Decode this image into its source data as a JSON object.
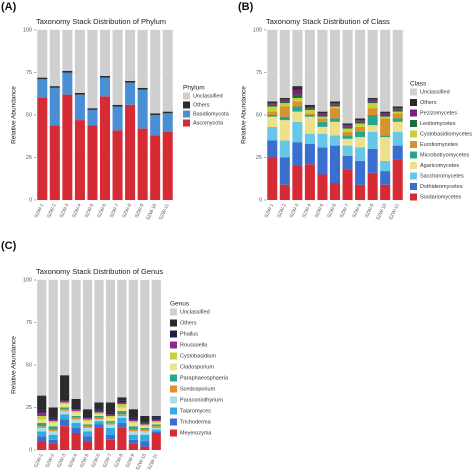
{
  "chart_data": [
    {
      "type": "stacked_bar",
      "panel_label": "(A)",
      "title": "Taxonomy Stack Distribution of Phylum",
      "ylabel": "Relative Abundance",
      "legend_title": "Phylum",
      "categories": [
        "SZW-1",
        "SZW-2",
        "SZW-3",
        "SZW-4",
        "SZW-5",
        "SZW-6",
        "SZW-7",
        "SZW-8",
        "SZW-9",
        "SZW-10",
        "SZW-11"
      ],
      "ylim": [
        0,
        100
      ],
      "yticks": [
        0,
        25,
        50,
        75,
        100
      ],
      "grid": true,
      "series": [
        {
          "name": "Ascomycota",
          "color": "#d62a35",
          "values": [
            60,
            44,
            62,
            47,
            44,
            61,
            41,
            56,
            42,
            38,
            40
          ]
        },
        {
          "name": "Basidiomycota",
          "color": "#4a8fd6",
          "values": [
            11,
            22,
            13,
            15,
            9,
            11,
            14,
            13,
            23,
            12,
            11
          ]
        },
        {
          "name": "Others",
          "color": "#2b2b2b",
          "values": [
            1,
            1,
            1,
            1,
            1,
            1,
            1,
            1,
            1,
            1,
            1
          ]
        },
        {
          "name": "Unclassified",
          "color": "#cfcfcf",
          "values": [
            28,
            33,
            24,
            37,
            46,
            27,
            44,
            30,
            34,
            49,
            48
          ]
        }
      ]
    },
    {
      "type": "stacked_bar",
      "panel_label": "(B)",
      "title": "Taxonomy Stack Distribution of Class",
      "ylabel": "Relative Abundance",
      "legend_title": "Class",
      "categories": [
        "SZW-1",
        "SZW-2",
        "SZW-3",
        "SZW-4",
        "SZW-5",
        "SZW-6",
        "SZW-7",
        "SZW-8",
        "SZW-9",
        "SZW-10",
        "SZW-11"
      ],
      "ylim": [
        0,
        100
      ],
      "yticks": [
        0,
        25,
        50,
        75,
        100
      ],
      "grid": true,
      "series": [
        {
          "name": "Sordariomycetes",
          "color": "#d62a35",
          "values": [
            25,
            9,
            20,
            21,
            15,
            10,
            18,
            9,
            16,
            9,
            24
          ]
        },
        {
          "name": "Dothideomycetes",
          "color": "#3a6fd0",
          "values": [
            10,
            16,
            14,
            12,
            16,
            22,
            8,
            14,
            14,
            8,
            8
          ]
        },
        {
          "name": "Saccharomycetes",
          "color": "#66c7e6",
          "values": [
            8,
            10,
            12,
            6,
            8,
            6,
            6,
            8,
            10,
            6,
            8
          ]
        },
        {
          "name": "Agaricomycetes",
          "color": "#ede08a",
          "values": [
            6,
            12,
            6,
            10,
            4,
            8,
            4,
            6,
            4,
            14,
            6
          ]
        },
        {
          "name": "Microbotryomycetes",
          "color": "#2aa58c",
          "values": [
            1,
            2,
            3,
            1,
            3,
            2,
            2,
            3,
            6,
            1,
            2
          ]
        },
        {
          "name": "Eurotiomycetes",
          "color": "#d8922a",
          "values": [
            2,
            6,
            3,
            1,
            2,
            6,
            2,
            3,
            4,
            10,
            3
          ]
        },
        {
          "name": "Cystobasidiomycetes",
          "color": "#c8cf3c",
          "values": [
            3,
            2,
            2,
            2,
            1,
            1,
            2,
            2,
            3,
            1,
            1
          ]
        },
        {
          "name": "Leotiomycetes",
          "color": "#1f6b3a",
          "values": [
            1,
            1,
            2,
            1,
            1,
            1,
            1,
            1,
            1,
            1,
            1
          ]
        },
        {
          "name": "Pezizomycetes",
          "color": "#7a1f7a",
          "values": [
            1,
            1,
            3,
            1,
            1,
            1,
            1,
            1,
            1,
            1,
            1
          ]
        },
        {
          "name": "Others",
          "color": "#2b2b2b",
          "values": [
            1,
            1,
            2,
            1,
            1,
            1,
            1,
            1,
            1,
            1,
            1
          ]
        },
        {
          "name": "Unclassified",
          "color": "#cfcfcf",
          "values": [
            42,
            40,
            33,
            44,
            48,
            42,
            55,
            52,
            40,
            48,
            45
          ]
        }
      ]
    },
    {
      "type": "stacked_bar",
      "panel_label": "(C)",
      "title": "Taxonomy Stack Distribution of Genus",
      "ylabel": "Relative Abundance",
      "legend_title": "Genus",
      "categories": [
        "SZW-1",
        "SZW-2",
        "SZW-3",
        "SZW-4",
        "SZW-5",
        "SZW-6",
        "SZW-7",
        "SZW-8",
        "SZW-9",
        "SZW-10",
        "SZW-11"
      ],
      "ylim": [
        0,
        100
      ],
      "yticks": [
        0,
        25,
        50,
        75,
        100
      ],
      "grid": true,
      "series": [
        {
          "name": "Meyerozyma",
          "color": "#d62a35",
          "values": [
            5,
            4,
            14,
            10,
            5,
            13,
            6,
            13,
            4,
            2,
            10
          ]
        },
        {
          "name": "Trichoderma",
          "color": "#3a6fd0",
          "values": [
            3,
            2,
            4,
            3,
            3,
            2,
            3,
            3,
            2,
            3,
            1
          ]
        },
        {
          "name": "Talaromyces",
          "color": "#35a9e0",
          "values": [
            3,
            3,
            3,
            3,
            3,
            2,
            4,
            3,
            3,
            4,
            1
          ]
        },
        {
          "name": "Paraconiothyrium",
          "color": "#a9dde8",
          "values": [
            2,
            2,
            2,
            2,
            2,
            1,
            2,
            1,
            2,
            2,
            1
          ]
        },
        {
          "name": "Scedosporium",
          "color": "#e0902a",
          "values": [
            1,
            1,
            1,
            1,
            1,
            1,
            1,
            1,
            1,
            1,
            1
          ]
        },
        {
          "name": "Paraphaeosphaeria",
          "color": "#2aa58c",
          "values": [
            2,
            2,
            1,
            1,
            1,
            1,
            1,
            2,
            2,
            1,
            1
          ]
        },
        {
          "name": "Cladosporium",
          "color": "#ede08a",
          "values": [
            2,
            2,
            2,
            2,
            2,
            1,
            2,
            2,
            2,
            1,
            1
          ]
        },
        {
          "name": "Cystobasidium",
          "color": "#c8cf3c",
          "values": [
            2,
            1,
            1,
            1,
            1,
            1,
            1,
            2,
            1,
            1,
            1
          ]
        },
        {
          "name": "Roussoella",
          "color": "#8a2a8a",
          "values": [
            2,
            1,
            1,
            1,
            1,
            1,
            1,
            1,
            1,
            1,
            1
          ]
        },
        {
          "name": "Phallus",
          "color": "#1d1f4a",
          "values": [
            1,
            1,
            1,
            1,
            1,
            1,
            1,
            1,
            1,
            1,
            1
          ]
        },
        {
          "name": "Others",
          "color": "#2b2b2b",
          "values": [
            9,
            6,
            14,
            5,
            4,
            4,
            6,
            2,
            5,
            3,
            1
          ]
        },
        {
          "name": "Unclassified",
          "color": "#cfcfcf",
          "values": [
            68,
            75,
            56,
            70,
            76,
            72,
            72,
            69,
            76,
            80,
            80
          ]
        }
      ]
    }
  ]
}
